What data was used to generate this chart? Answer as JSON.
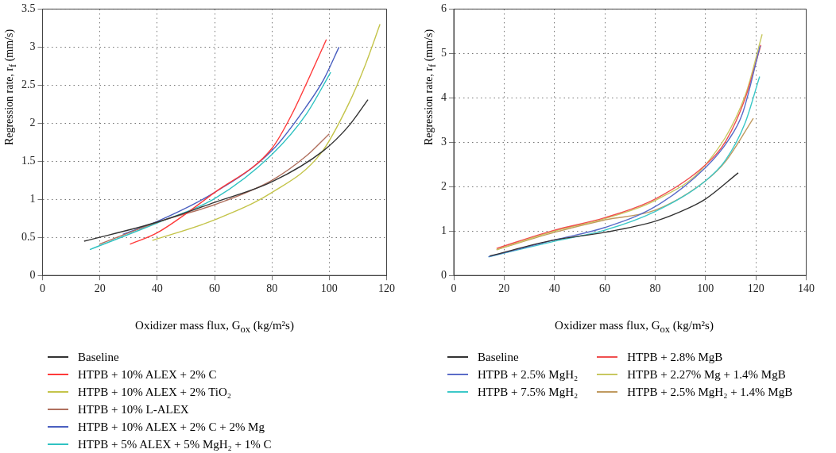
{
  "chart_data": [
    {
      "type": "line",
      "xlabel": "Oxidizer mass flux, G$_{ox}$ (kg/m²s)",
      "ylabel": "Regression rate, r$_{f}$ (mm/s)",
      "xlim": [
        0,
        120
      ],
      "xticks": [
        0,
        20,
        40,
        60,
        80,
        100,
        120
      ],
      "ylim": [
        0,
        3.5
      ],
      "yticks": [
        0,
        0.5,
        1,
        1.5,
        2,
        2.5,
        3,
        3.5
      ],
      "grid": true,
      "legend": "bottom",
      "marker": "none",
      "line_style": "solid",
      "series": [
        {
          "name": "Baseline",
          "color": "#333333",
          "x": [
            14.5,
            40,
            60,
            80,
            98,
            106.7,
            113.5
          ],
          "values": [
            0.45,
            0.7,
            0.96,
            1.23,
            1.64,
            1.96,
            2.31
          ]
        },
        {
          "name": "HTPB + 10% ALEX + 2% C",
          "color": "#ff3a3a",
          "x": [
            30.5,
            40,
            60,
            80,
            87,
            93,
            99
          ],
          "values": [
            0.41,
            0.56,
            1.09,
            1.67,
            2.12,
            2.6,
            3.1
          ]
        },
        {
          "name": "HTPB + 10% ALEX + 2% TiO₂",
          "color": "#c4c44a",
          "x": [
            38.3,
            60,
            80,
            97,
            106.7,
            112.5,
            117.7
          ],
          "values": [
            0.46,
            0.73,
            1.09,
            1.6,
            2.25,
            2.76,
            3.3
          ]
        },
        {
          "name": "HTPB + 10% L-ALEX",
          "color": "#b0705e",
          "x": [
            19.8,
            40,
            60,
            80,
            92,
            100
          ],
          "values": [
            0.41,
            0.7,
            0.93,
            1.25,
            1.57,
            1.86
          ]
        },
        {
          "name": "HTPB + 10% ALEX + 2% C + 2% Mg",
          "color": "#4a5fc0",
          "x": [
            28,
            40,
            60,
            80,
            92,
            98,
            103.4
          ],
          "values": [
            0.54,
            0.71,
            1.09,
            1.64,
            2.22,
            2.57,
            3
          ]
        },
        {
          "name": "HTPB + 5% ALEX + 5% MgH₂ + 1% C",
          "color": "#2fc2c2",
          "x": [
            16.5,
            40,
            60,
            80,
            92,
            100.5
          ],
          "values": [
            0.34,
            0.69,
            1.01,
            1.59,
            2.12,
            2.67
          ]
        }
      ]
    },
    {
      "type": "line",
      "xlabel": "Oxidizer mass flux, G$_{ox}$ (kg/m²s)",
      "ylabel": "Regression rate, r$_{f}$ (mm/s)",
      "xlim": [
        0,
        140
      ],
      "xticks": [
        0,
        20,
        40,
        60,
        80,
        100,
        120,
        140
      ],
      "ylim": [
        0,
        6
      ],
      "yticks": [
        0,
        1,
        2,
        3,
        4,
        5,
        6
      ],
      "grid": true,
      "legend": "bottom",
      "marker": "none",
      "line_style": "solid",
      "series": [
        {
          "name": "Baseline",
          "color": "#333333",
          "x": [
            14.3,
            40,
            60,
            80,
            93,
            100,
            113
          ],
          "values": [
            0.44,
            0.8,
            0.97,
            1.22,
            1.51,
            1.72,
            2.31
          ]
        },
        {
          "name": "HTPB + 2.5% MgH₂",
          "color": "#5a6cc8",
          "x": [
            13.8,
            40,
            60,
            80,
            100,
            109,
            114.7,
            121.7
          ],
          "values": [
            0.42,
            0.8,
            1.08,
            1.55,
            2.43,
            3.04,
            3.65,
            5.17
          ]
        },
        {
          "name": "HTPB + 7.5% MgH₂",
          "color": "#3cc8c8",
          "x": [
            13.8,
            40,
            60,
            80,
            100,
            108,
            115.7,
            121.5
          ],
          "values": [
            0.42,
            0.77,
            1.02,
            1.44,
            2.13,
            2.6,
            3.43,
            4.48
          ]
        },
        {
          "name": "HTPB + 2.8% MgB",
          "color": "#f05050",
          "x": [
            17,
            40,
            60,
            80,
            100,
            108.2,
            115.7,
            122
          ],
          "values": [
            0.61,
            1.02,
            1.3,
            1.72,
            2.49,
            3.04,
            3.98,
            5.19
          ]
        },
        {
          "name": "HTPB + 2.27% Mg + 1.4% MgB",
          "color": "#c8c860",
          "x": [
            17,
            40,
            60,
            80,
            100,
            115.7,
            122.5
          ],
          "values": [
            0.58,
            1,
            1.28,
            1.69,
            2.49,
            4.04,
            5.43
          ]
        },
        {
          "name": "HTPB + 2.5% MgH₂ + 1.4% MgB",
          "color": "#c09a60",
          "x": [
            17,
            40,
            60,
            80,
            100,
            108,
            119
          ],
          "values": [
            0.58,
            0.97,
            1.25,
            1.47,
            2.13,
            2.57,
            3.54
          ]
        }
      ]
    }
  ]
}
